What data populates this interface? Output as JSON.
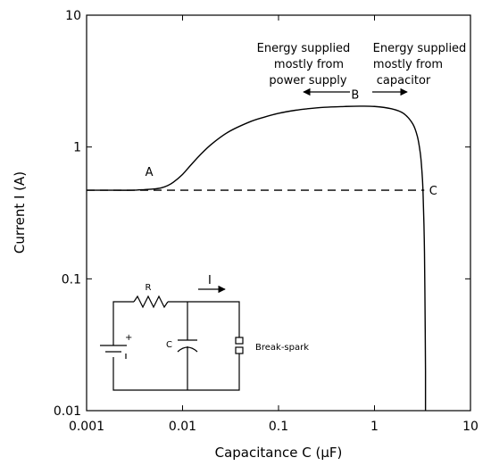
{
  "chart_data": {
    "type": "line",
    "title": "",
    "xlabel": "Capacitance C (μF)",
    "ylabel": "Current I (A)",
    "x_scale": "log",
    "y_scale": "log",
    "xlim": [
      0.001,
      10
    ],
    "ylim": [
      0.01,
      10
    ],
    "x_ticks": [
      "0.001",
      "0.01",
      "0.1",
      "1",
      "10"
    ],
    "y_ticks": [
      "0.01",
      "0.1",
      "1",
      "10"
    ],
    "grid": false,
    "legend": "none",
    "series": [
      {
        "style": "solid",
        "x": [
          0.001,
          0.002,
          0.003,
          0.004,
          0.005,
          0.006,
          0.007,
          0.008,
          0.01,
          0.012,
          0.015,
          0.02,
          0.03,
          0.05,
          0.07,
          0.1,
          0.15,
          0.2,
          0.3,
          0.5,
          0.7,
          1.0,
          1.5,
          2.0,
          2.5,
          2.8,
          3.0,
          3.1,
          3.2,
          3.3,
          3.35,
          3.4,
          3.4
        ],
        "y": [
          0.47,
          0.47,
          0.47,
          0.475,
          0.48,
          0.49,
          0.51,
          0.54,
          0.62,
          0.72,
          0.86,
          1.05,
          1.3,
          1.55,
          1.68,
          1.8,
          1.9,
          1.95,
          2.0,
          2.03,
          2.04,
          2.03,
          1.95,
          1.8,
          1.5,
          1.2,
          0.9,
          0.7,
          0.47,
          0.2,
          0.08,
          0.02,
          0.01
        ]
      },
      {
        "style": "dashed",
        "x": [
          0.001,
          3.3
        ],
        "y": [
          0.47,
          0.47
        ]
      }
    ],
    "annotations": [
      {
        "text": "A",
        "x": 0.005,
        "y": 0.5
      },
      {
        "text": "B",
        "x": 0.7,
        "y": 2.05
      },
      {
        "text": "C",
        "x": 3.3,
        "y": 0.47
      },
      {
        "lines": [
          "Energy supplied",
          "mostly from",
          "power supply"
        ],
        "arrow": "left"
      },
      {
        "lines": [
          "Energy supplied",
          "mostly from",
          "capacitor"
        ],
        "arrow": "right"
      }
    ],
    "inset_circuit": {
      "labels": {
        "resistor": "R",
        "capacitor": "C",
        "current": "I",
        "load": "Break-spark",
        "battery_plus": "+"
      }
    }
  }
}
